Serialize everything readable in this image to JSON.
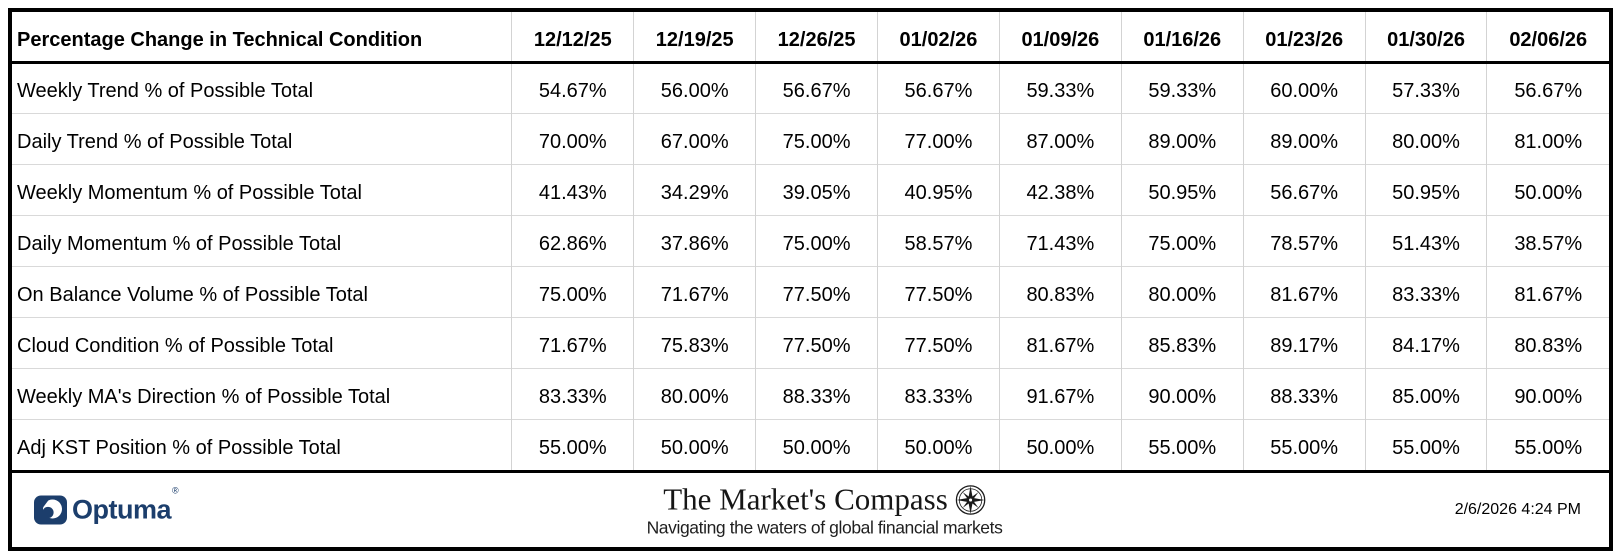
{
  "table": {
    "header_label": "Percentage Change in Technical Condition",
    "columns": [
      "12/12/25",
      "12/19/25",
      "12/26/25",
      "01/02/26",
      "01/09/26",
      "01/16/26",
      "01/23/26",
      "01/30/26",
      "02/06/26"
    ],
    "rows": [
      {
        "label": "Weekly Trend % of Possible Total",
        "values": [
          "54.67%",
          "56.00%",
          "56.67%",
          "56.67%",
          "59.33%",
          "59.33%",
          "60.00%",
          "57.33%",
          "56.67%"
        ]
      },
      {
        "label": "Daily Trend % of Possible Total",
        "values": [
          "70.00%",
          "67.00%",
          "75.00%",
          "77.00%",
          "87.00%",
          "89.00%",
          "89.00%",
          "80.00%",
          "81.00%"
        ]
      },
      {
        "label": "Weekly Momentum % of Possible Total",
        "values": [
          "41.43%",
          "34.29%",
          "39.05%",
          "40.95%",
          "42.38%",
          "50.95%",
          "56.67%",
          "50.95%",
          "50.00%"
        ]
      },
      {
        "label": "Daily Momentum % of Possible Total",
        "values": [
          "62.86%",
          "37.86%",
          "75.00%",
          "58.57%",
          "71.43%",
          "75.00%",
          "78.57%",
          "51.43%",
          "38.57%"
        ]
      },
      {
        "label": "On Balance Volume % of Possible Total",
        "values": [
          "75.00%",
          "71.67%",
          "77.50%",
          "77.50%",
          "80.83%",
          "80.00%",
          "81.67%",
          "83.33%",
          "81.67%"
        ]
      },
      {
        "label": "Cloud Condition % of Possible Total",
        "values": [
          "71.67%",
          "75.83%",
          "77.50%",
          "77.50%",
          "81.67%",
          "85.83%",
          "89.17%",
          "84.17%",
          "80.83%"
        ]
      },
      {
        "label": "Weekly MA's Direction % of Possible Total",
        "values": [
          "83.33%",
          "80.00%",
          "88.33%",
          "83.33%",
          "91.67%",
          "90.00%",
          "88.33%",
          "85.00%",
          "90.00%"
        ]
      },
      {
        "label": "Adj KST Position % of Possible Total",
        "values": [
          "55.00%",
          "50.00%",
          "50.00%",
          "50.00%",
          "50.00%",
          "55.00%",
          "55.00%",
          "55.00%",
          "55.00%"
        ]
      }
    ]
  },
  "chart_data": {
    "type": "table",
    "title": "Percentage Change in Technical Condition",
    "categories": [
      "12/12/25",
      "12/19/25",
      "12/26/25",
      "01/02/26",
      "01/09/26",
      "01/16/26",
      "01/23/26",
      "01/30/26",
      "02/06/26"
    ],
    "series": [
      {
        "name": "Weekly Trend % of Possible Total",
        "values": [
          54.67,
          56.0,
          56.67,
          56.67,
          59.33,
          59.33,
          60.0,
          57.33,
          56.67
        ]
      },
      {
        "name": "Daily Trend % of Possible Total",
        "values": [
          70.0,
          67.0,
          75.0,
          77.0,
          87.0,
          89.0,
          89.0,
          80.0,
          81.0
        ]
      },
      {
        "name": "Weekly Momentum % of Possible Total",
        "values": [
          41.43,
          34.29,
          39.05,
          40.95,
          42.38,
          50.95,
          56.67,
          50.95,
          50.0
        ]
      },
      {
        "name": "Daily Momentum % of Possible Total",
        "values": [
          62.86,
          37.86,
          75.0,
          58.57,
          71.43,
          75.0,
          78.57,
          51.43,
          38.57
        ]
      },
      {
        "name": "On Balance Volume % of Possible Total",
        "values": [
          75.0,
          71.67,
          77.5,
          77.5,
          80.83,
          80.0,
          81.67,
          83.33,
          81.67
        ]
      },
      {
        "name": "Cloud Condition % of Possible Total",
        "values": [
          71.67,
          75.83,
          77.5,
          77.5,
          81.67,
          85.83,
          89.17,
          84.17,
          80.83
        ]
      },
      {
        "name": "Weekly MA's Direction % of Possible Total",
        "values": [
          83.33,
          80.0,
          88.33,
          83.33,
          91.67,
          90.0,
          88.33,
          85.0,
          90.0
        ]
      },
      {
        "name": "Adj KST Position % of Possible Total",
        "values": [
          55.0,
          50.0,
          50.0,
          50.0,
          50.0,
          55.0,
          55.0,
          55.0,
          55.0
        ]
      }
    ],
    "unit": "%"
  },
  "footer": {
    "logo_text": "Optuma",
    "logo_reg_mark": "®",
    "brand_title": "The Market's Compass",
    "brand_subtitle": "Navigating the waters of global financial markets",
    "timestamp": "2/6/2026 4:24 PM"
  },
  "icons": {
    "optuma_logo": "optuma-wave-icon",
    "compass": "compass-rose-icon"
  },
  "colors": {
    "optuma_navy": "#1c3e6c",
    "gridline": "#d3d3d3",
    "border": "#000000",
    "background": "#ffffff"
  }
}
